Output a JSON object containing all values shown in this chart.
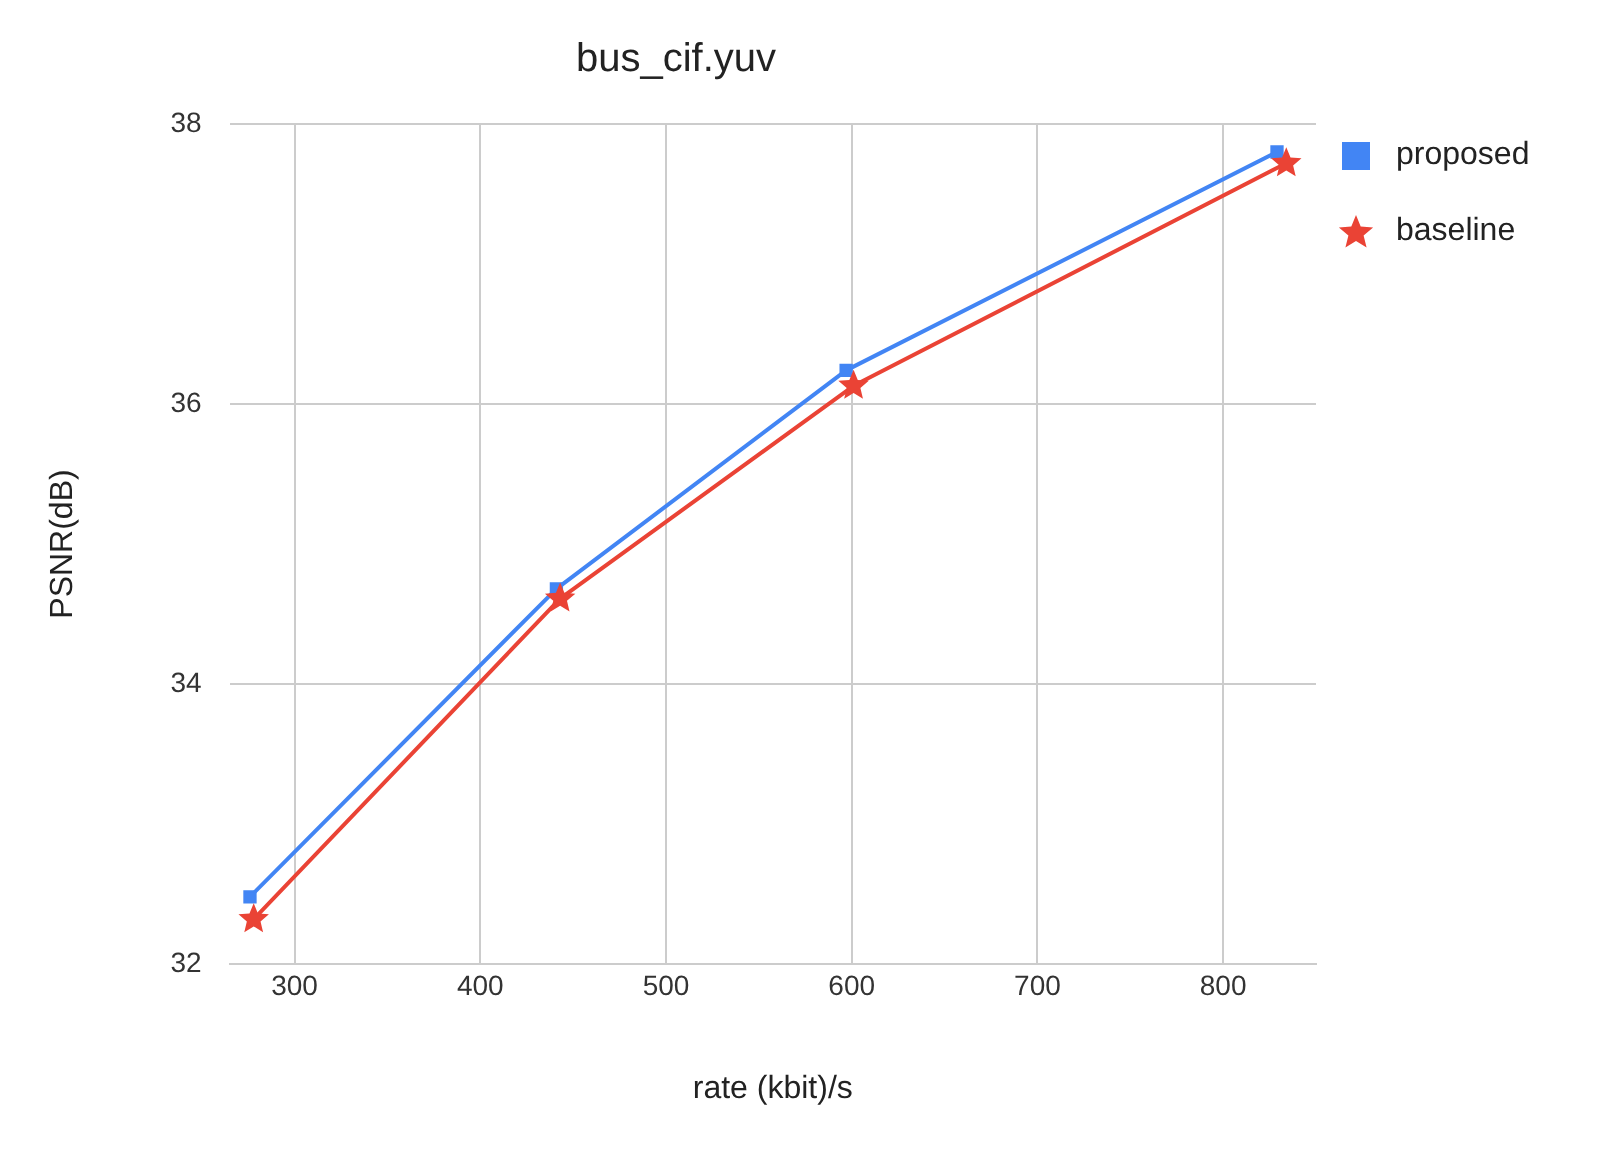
{
  "chart_data": {
    "type": "line",
    "title": "bus_cif.yuv",
    "xlabel": "rate (kbit)/s",
    "ylabel": "PSNR(dB)",
    "xlim": [
      265,
      850
    ],
    "xticks": [
      300,
      400,
      500,
      600,
      700,
      800
    ],
    "ylim": [
      32,
      38
    ],
    "yticks": [
      32,
      34,
      36,
      38
    ],
    "grid": true,
    "legend": "top right",
    "series": [
      {
        "name": "proposed",
        "color": "#4285f4",
        "marker": "square",
        "x": [
          276,
          441,
          597,
          829
        ],
        "values": [
          32.48,
          34.68,
          36.24,
          37.8
        ]
      },
      {
        "name": "baseline",
        "color": "#ea4335",
        "marker": "star",
        "x": [
          278,
          443,
          601,
          834
        ],
        "values": [
          32.32,
          34.61,
          36.13,
          37.72
        ]
      }
    ]
  }
}
